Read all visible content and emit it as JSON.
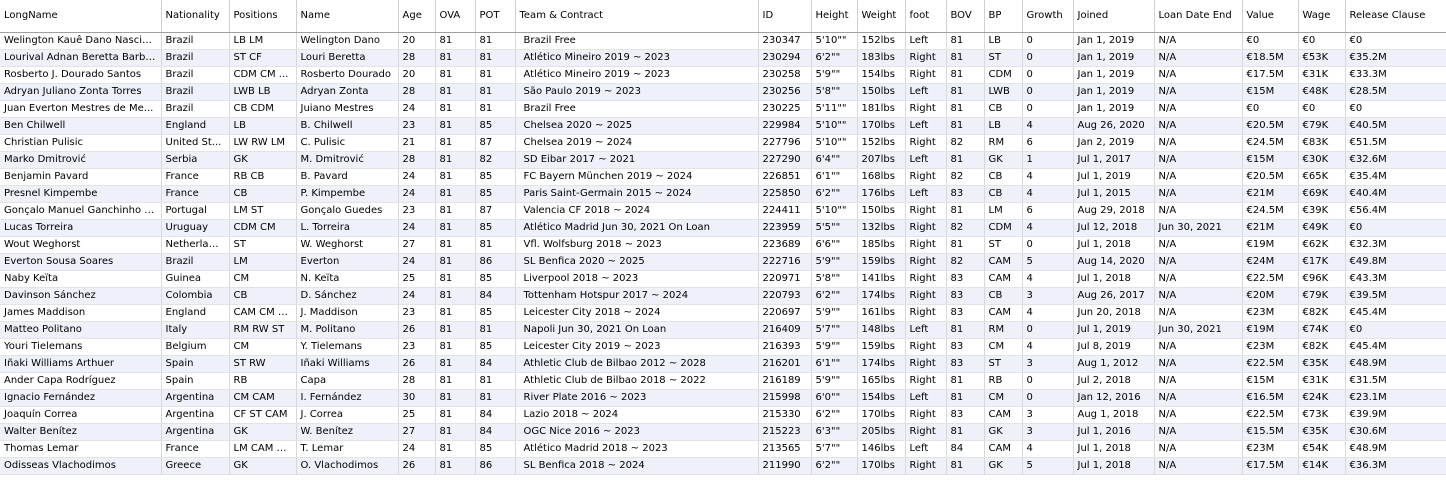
{
  "table": {
    "headers": {
      "long_name": "LongName",
      "nationality": "Nationality",
      "positions": "Positions",
      "name": "Name",
      "age": "Age",
      "ova": "OVA",
      "pot": "POT",
      "team": "Team & Contract",
      "id": "ID",
      "height": "Height",
      "weight": "Weight",
      "foot": "foot",
      "bov": "BOV",
      "bp": "BP",
      "growth": "Growth",
      "joined": "Joined",
      "loan_end": "Loan Date End",
      "value": "Value",
      "wage": "Wage",
      "release": "Release Clause"
    },
    "rows": [
      [
        "Welington Kauê Dano Nascim...",
        "Brazil",
        "LB LM",
        "Welington Dano",
        "20",
        "81",
        "81",
        "Brazil Free",
        "230347",
        "5'10\"\"",
        "152lbs",
        "Left",
        "81",
        "LB",
        "0",
        "Jan 1, 2019",
        "N/A",
        "€0",
        "€0",
        "€0"
      ],
      [
        "Lourival Adnan Beretta Barbosa",
        "Brazil",
        "ST CF",
        "Louri Beretta",
        "28",
        "81",
        "81",
        "Atlético Mineiro 2019 ~ 2023",
        "230294",
        "6'2\"\"",
        "183lbs",
        "Right",
        "81",
        "ST",
        "0",
        "Jan 1, 2019",
        "N/A",
        "€18.5M",
        "€53K",
        "€35.2M"
      ],
      [
        "Rosberto J. Dourado Santos",
        "Brazil",
        "CDM CM ...",
        "Rosberto Dourado",
        "20",
        "81",
        "81",
        "Atlético Mineiro 2019 ~ 2023",
        "230258",
        "5'9\"\"",
        "154lbs",
        "Right",
        "81",
        "CDM",
        "0",
        "Jan 1, 2019",
        "N/A",
        "€17.5M",
        "€31K",
        "€33.3M"
      ],
      [
        "Adryan Juliano Zonta Torres",
        "Brazil",
        "LWB LB",
        "Adryan Zonta",
        "28",
        "81",
        "81",
        "São Paulo 2019 ~ 2023",
        "230256",
        "5'8\"\"",
        "150lbs",
        "Left",
        "81",
        "LWB",
        "0",
        "Jan 1, 2019",
        "N/A",
        "€15M",
        "€48K",
        "€28.5M"
      ],
      [
        "Juan Everton Mestres de Me...",
        "Brazil",
        "CB CDM",
        "Juiano Mestres",
        "24",
        "81",
        "81",
        "Brazil Free",
        "230225",
        "5'11\"\"",
        "181lbs",
        "Right",
        "81",
        "CB",
        "0",
        "Jan 1, 2019",
        "N/A",
        "€0",
        "€0",
        "€0"
      ],
      [
        "Ben Chilwell",
        "England",
        "LB",
        "B. Chilwell",
        "23",
        "81",
        "85",
        "Chelsea 2020 ~ 2025",
        "229984",
        "5'10\"\"",
        "170lbs",
        "Left",
        "81",
        "LB",
        "4",
        "Aug 26, 2020",
        "N/A",
        "€20.5M",
        "€79K",
        "€40.5M"
      ],
      [
        "Christian Pulisic",
        "United St...",
        "LW RW LM",
        "C. Pulisic",
        "21",
        "81",
        "87",
        "Chelsea 2019 ~ 2024",
        "227796",
        "5'10\"\"",
        "152lbs",
        "Right",
        "82",
        "RM",
        "6",
        "Jan 2, 2019",
        "N/A",
        "€24.5M",
        "€83K",
        "€51.5M"
      ],
      [
        "Marko Dmitrović",
        "Serbia",
        "GK",
        "M. Dmitrović",
        "28",
        "81",
        "82",
        "SD Eibar 2017 ~ 2021",
        "227290",
        "6'4\"\"",
        "207lbs",
        "Left",
        "81",
        "GK",
        "1",
        "Jul 1, 2017",
        "N/A",
        "€15M",
        "€30K",
        "€32.6M"
      ],
      [
        "Benjamin Pavard",
        "France",
        "RB CB",
        "B. Pavard",
        "24",
        "81",
        "85",
        "FC Bayern München 2019 ~ 2024",
        "226851",
        "6'1\"\"",
        "168lbs",
        "Right",
        "82",
        "CB",
        "4",
        "Jul 1, 2019",
        "N/A",
        "€20.5M",
        "€65K",
        "€35.4M"
      ],
      [
        "Presnel Kimpembe",
        "France",
        "CB",
        "P. Kimpembe",
        "24",
        "81",
        "85",
        "Paris Saint-Germain 2015 ~ 2024",
        "225850",
        "6'2\"\"",
        "176lbs",
        "Left",
        "83",
        "CB",
        "4",
        "Jul 1, 2015",
        "N/A",
        "€21M",
        "€69K",
        "€40.4M"
      ],
      [
        "Gonçalo Manuel Ganchinho G...",
        "Portugal",
        "LM ST",
        "Gonçalo Guedes",
        "23",
        "81",
        "87",
        "Valencia CF 2018 ~ 2024",
        "224411",
        "5'10\"\"",
        "150lbs",
        "Right",
        "81",
        "LM",
        "6",
        "Aug 29, 2018",
        "N/A",
        "€24.5M",
        "€39K",
        "€56.4M"
      ],
      [
        "Lucas Torreira",
        "Uruguay",
        "CDM CM",
        "L. Torreira",
        "24",
        "81",
        "85",
        "Atlético Madrid Jun 30, 2021 On Loan",
        "223959",
        "5'5\"\"",
        "132lbs",
        "Right",
        "82",
        "CDM",
        "4",
        "Jul 12, 2018",
        "Jun 30, 2021",
        "€21M",
        "€49K",
        "€0"
      ],
      [
        "Wout Weghorst",
        "Netherlands",
        "ST",
        "W. Weghorst",
        "27",
        "81",
        "81",
        "Vfl. Wolfsburg 2018 ~ 2023",
        "223689",
        "6'6\"\"",
        "185lbs",
        "Right",
        "81",
        "ST",
        "0",
        "Jul 1, 2018",
        "N/A",
        "€19M",
        "€62K",
        "€32.3M"
      ],
      [
        "Everton Sousa Soares",
        "Brazil",
        "LM",
        "Everton",
        "24",
        "81",
        "86",
        "SL Benfica 2020 ~ 2025",
        "222716",
        "5'9\"\"",
        "159lbs",
        "Right",
        "82",
        "CAM",
        "5",
        "Aug 14, 2020",
        "N/A",
        "€24M",
        "€17K",
        "€49.8M"
      ],
      [
        "Naby Keïta",
        "Guinea",
        "CM",
        "N. Keïta",
        "25",
        "81",
        "85",
        "Liverpool 2018 ~ 2023",
        "220971",
        "5'8\"\"",
        "141lbs",
        "Right",
        "83",
        "CAM",
        "4",
        "Jul 1, 2018",
        "N/A",
        "€22.5M",
        "€96K",
        "€43.3M"
      ],
      [
        "Davinson Sánchez",
        "Colombia",
        "CB",
        "D. Sánchez",
        "24",
        "81",
        "84",
        "Tottenham Hotspur 2017 ~ 2024",
        "220793",
        "6'2\"\"",
        "174lbs",
        "Right",
        "83",
        "CB",
        "3",
        "Aug 26, 2017",
        "N/A",
        "€20M",
        "€79K",
        "€39.5M"
      ],
      [
        "James Maddison",
        "England",
        "CAM CM LW",
        "J. Maddison",
        "23",
        "81",
        "85",
        "Leicester City 2018 ~ 2024",
        "220697",
        "5'9\"\"",
        "161lbs",
        "Right",
        "83",
        "CAM",
        "4",
        "Jun 20, 2018",
        "N/A",
        "€23M",
        "€82K",
        "€45.4M"
      ],
      [
        "Matteo Politano",
        "Italy",
        "RM RW ST",
        "M. Politano",
        "26",
        "81",
        "81",
        "Napoli Jun 30, 2021 On Loan",
        "216409",
        "5'7\"\"",
        "148lbs",
        "Left",
        "81",
        "RM",
        "0",
        "Jul 1, 2019",
        "Jun 30, 2021",
        "€19M",
        "€74K",
        "€0"
      ],
      [
        "Youri Tielemans",
        "Belgium",
        "CM",
        "Y. Tielemans",
        "23",
        "81",
        "85",
        "Leicester City 2019 ~ 2023",
        "216393",
        "5'9\"\"",
        "159lbs",
        "Right",
        "83",
        "CM",
        "4",
        "Jul 8, 2019",
        "N/A",
        "€23M",
        "€82K",
        "€45.4M"
      ],
      [
        "Iñaki Williams Arthuer",
        "Spain",
        "ST RW",
        "Iñaki Williams",
        "26",
        "81",
        "84",
        "Athletic Club de Bilbao 2012 ~ 2028",
        "216201",
        "6'1\"\"",
        "174lbs",
        "Right",
        "83",
        "ST",
        "3",
        "Aug 1, 2012",
        "N/A",
        "€22.5M",
        "€35K",
        "€48.9M"
      ],
      [
        "Ander Capa Rodríguez",
        "Spain",
        "RB",
        "Capa",
        "28",
        "81",
        "81",
        "Athletic Club de Bilbao 2018 ~ 2022",
        "216189",
        "5'9\"\"",
        "165lbs",
        "Right",
        "81",
        "RB",
        "0",
        "Jul 2, 2018",
        "N/A",
        "€15M",
        "€31K",
        "€31.5M"
      ],
      [
        "Ignacio Fernández",
        "Argentina",
        "CM CAM",
        "I. Fernández",
        "30",
        "81",
        "81",
        "River Plate 2016 ~ 2023",
        "215998",
        "6'0\"\"",
        "154lbs",
        "Left",
        "81",
        "CM",
        "0",
        "Jan 12, 2016",
        "N/A",
        "€16.5M",
        "€24K",
        "€23.1M"
      ],
      [
        "Joaquín Correa",
        "Argentina",
        "CF ST CAM",
        "J. Correa",
        "25",
        "81",
        "84",
        "Lazio 2018 ~ 2024",
        "215330",
        "6'2\"\"",
        "170lbs",
        "Right",
        "83",
        "CAM",
        "3",
        "Aug 1, 2018",
        "N/A",
        "€22.5M",
        "€73K",
        "€39.9M"
      ],
      [
        "Walter Benítez",
        "Argentina",
        "GK",
        "W. Benítez",
        "27",
        "81",
        "84",
        "OGC Nice 2016 ~ 2023",
        "215223",
        "6'3\"\"",
        "205lbs",
        "Right",
        "81",
        "GK",
        "3",
        "Jul 1, 2016",
        "N/A",
        "€15.5M",
        "€35K",
        "€30.6M"
      ],
      [
        "Thomas Lemar",
        "France",
        "LM CAM RM",
        "T. Lemar",
        "24",
        "81",
        "85",
        "Atlético Madrid 2018 ~ 2023",
        "213565",
        "5'7\"\"",
        "146lbs",
        "Left",
        "84",
        "CAM",
        "4",
        "Jul 1, 2018",
        "N/A",
        "€23M",
        "€54K",
        "€48.9M"
      ],
      [
        "Odisseas Vlachodimos",
        "Greece",
        "GK",
        "O. Vlachodimos",
        "26",
        "81",
        "86",
        "SL Benfica 2018 ~ 2024",
        "211990",
        "6'2\"\"",
        "170lbs",
        "Right",
        "81",
        "GK",
        "5",
        "Jul 1, 2018",
        "N/A",
        "€17.5M",
        "€14K",
        "€36.3M"
      ]
    ]
  }
}
